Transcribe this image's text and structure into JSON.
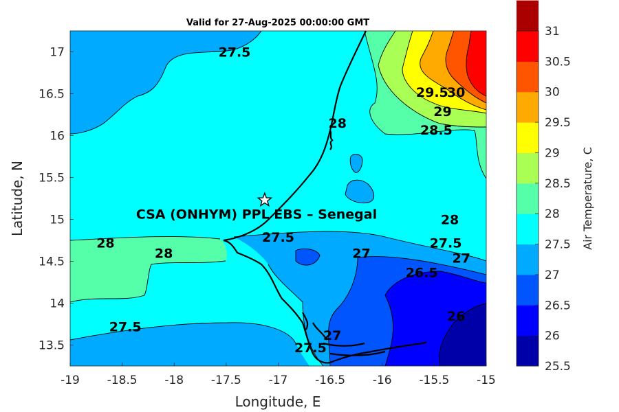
{
  "chart_data": {
    "type": "contour",
    "title": "Valid for 27-Aug-2025 00:00:00 GMT",
    "xlabel": "Longitude, E",
    "ylabel": "Latitude, N",
    "xlim": [
      -19,
      -15
    ],
    "ylim": [
      13.25,
      17.25
    ],
    "xticks": [
      -19,
      -18.5,
      -18,
      -17.5,
      -17,
      -16.5,
      -16,
      -15.5,
      -15
    ],
    "yticks": [
      13.5,
      14,
      14.5,
      15,
      15.5,
      16,
      16.5,
      17
    ],
    "colorbar": {
      "label": "Air Temperature, C",
      "levels": [
        25.5,
        26,
        26.5,
        27,
        27.5,
        28,
        28.5,
        29,
        29.5,
        30,
        30.5,
        31
      ],
      "colors": [
        "#0000a8",
        "#0000ff",
        "#0055ff",
        "#00aaff",
        "#00ffff",
        "#55ffaa",
        "#aaff55",
        "#ffff00",
        "#ffaa00",
        "#ff5500",
        "#ff0000",
        "#aa0000"
      ]
    },
    "contour_labels": [
      {
        "text": "27.5",
        "lon": -17.42,
        "lat": 17.0
      },
      {
        "text": "28",
        "lon": -16.43,
        "lat": 16.15
      },
      {
        "text": "29.5",
        "lon": -15.52,
        "lat": 16.52
      },
      {
        "text": "30",
        "lon": -15.29,
        "lat": 16.52
      },
      {
        "text": "29",
        "lon": -15.42,
        "lat": 16.29
      },
      {
        "text": "28.5",
        "lon": -15.48,
        "lat": 16.07
      },
      {
        "text": "28",
        "lon": -18.66,
        "lat": 14.72
      },
      {
        "text": "28",
        "lon": -18.1,
        "lat": 14.6
      },
      {
        "text": "27.5",
        "lon": -17.0,
        "lat": 14.79
      },
      {
        "text": "27",
        "lon": -16.2,
        "lat": 14.6
      },
      {
        "text": "28",
        "lon": -15.35,
        "lat": 15.0
      },
      {
        "text": "27.5",
        "lon": -15.39,
        "lat": 14.72
      },
      {
        "text": "27",
        "lon": -15.24,
        "lat": 14.54
      },
      {
        "text": "26.5",
        "lon": -15.62,
        "lat": 14.37
      },
      {
        "text": "26",
        "lon": -15.29,
        "lat": 13.85
      },
      {
        "text": "27.5",
        "lon": -18.47,
        "lat": 13.72
      },
      {
        "text": "27.5",
        "lon": -16.69,
        "lat": 13.47
      },
      {
        "text": "27",
        "lon": -16.48,
        "lat": 13.62
      }
    ],
    "site": {
      "name": "CSA (ONHYM) PPL EBS  – Senegal",
      "lon": -17.13,
      "lat": 15.23
    }
  }
}
